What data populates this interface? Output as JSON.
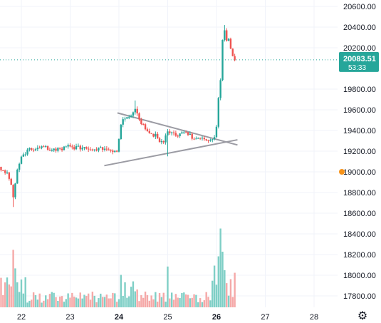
{
  "chart_data": {
    "type": "candlestick",
    "title": "",
    "price_axis": {
      "range": [
        17650,
        20700
      ],
      "ticks": [
        20600,
        20400,
        20200,
        19800,
        19600,
        19400,
        19200,
        19000,
        18800,
        18600,
        18400,
        18200,
        18000,
        17800
      ],
      "tick_labels": [
        "20600.00",
        "20400.00",
        "20200.00",
        "19800.00",
        "19600.00",
        "19400.00",
        "19200.00",
        "19000.00",
        "18800.00",
        "18600.00",
        "18400.00",
        "18200.00",
        "18000.00",
        "17800.00"
      ]
    },
    "time_axis": {
      "range": [
        21.5,
        28.4
      ],
      "ticks": [
        22,
        23,
        24,
        25,
        26,
        27,
        28
      ],
      "tick_labels": [
        "22",
        "23",
        "24",
        "25",
        "26",
        "27",
        "28"
      ],
      "bold_ticks": [
        "24",
        "26"
      ]
    },
    "grid": true,
    "current_price": {
      "value": 20083.51,
      "label": "20083.51",
      "countdown": "53:33",
      "color": "#26a69a"
    },
    "price_marker": {
      "value": 19000,
      "color": "#f7931a"
    },
    "trendlines": [
      {
        "name": "triangle-upper",
        "from": [
          23.97,
          19570
        ],
        "to": [
          26.43,
          19260
        ],
        "color": "#9b9ba3"
      },
      {
        "name": "triangle-lower",
        "from": [
          23.7,
          19060
        ],
        "to": [
          26.43,
          19310
        ],
        "color": "#9b9ba3"
      }
    ],
    "colors": {
      "up": "#26a69a",
      "down": "#ef5350",
      "volume_up": "#7fcfc6",
      "volume_down": "#f5a9a8",
      "grid": "#f0f3fa"
    },
    "anchors": [
      [
        21.5,
        19050
      ],
      [
        21.7,
        18990
      ],
      [
        21.78,
        18920
      ],
      [
        21.84,
        18740
      ],
      [
        21.9,
        19000
      ],
      [
        22.0,
        19160
      ],
      [
        22.2,
        19220
      ],
      [
        22.5,
        19230
      ],
      [
        22.8,
        19215
      ],
      [
        22.9,
        19250
      ],
      [
        23.1,
        19230
      ],
      [
        23.3,
        19240
      ],
      [
        23.55,
        19215
      ],
      [
        23.7,
        19230
      ],
      [
        23.82,
        19210
      ],
      [
        23.97,
        19210
      ],
      [
        24.05,
        19500
      ],
      [
        24.25,
        19560
      ],
      [
        24.35,
        19600
      ],
      [
        24.45,
        19480
      ],
      [
        24.55,
        19400
      ],
      [
        24.75,
        19350
      ],
      [
        24.9,
        19270
      ],
      [
        25.0,
        19390
      ],
      [
        25.2,
        19360
      ],
      [
        25.35,
        19390
      ],
      [
        25.55,
        19320
      ],
      [
        25.75,
        19330
      ],
      [
        25.85,
        19300
      ],
      [
        25.97,
        19330
      ],
      [
        26.02,
        19530
      ],
      [
        26.06,
        19850
      ],
      [
        26.1,
        19950
      ],
      [
        26.13,
        20300
      ],
      [
        26.18,
        20350
      ],
      [
        26.25,
        20250
      ],
      [
        26.32,
        20150
      ],
      [
        26.4,
        20083.51
      ]
    ],
    "wicks_special": [
      {
        "t": 21.84,
        "low": 18660
      },
      {
        "t": 24.35,
        "high": 19690
      },
      {
        "t": 25.0,
        "low": 19150
      },
      {
        "t": 26.15,
        "high": 20420
      }
    ],
    "volume_peaks": [
      {
        "t": 21.82,
        "v": 0.62
      },
      {
        "t": 21.88,
        "v": 0.42
      },
      {
        "t": 22.0,
        "v": 0.3
      },
      {
        "t": 24.05,
        "v": 0.35
      },
      {
        "t": 24.3,
        "v": 0.28
      },
      {
        "t": 25.0,
        "v": 0.44
      },
      {
        "t": 25.95,
        "v": 0.45
      },
      {
        "t": 26.03,
        "v": 0.55
      },
      {
        "t": 26.08,
        "v": 0.85
      },
      {
        "t": 26.12,
        "v": 0.6
      },
      {
        "t": 26.18,
        "v": 0.4
      }
    ]
  },
  "toolbar": {
    "settings_icon": "gear-icon"
  }
}
